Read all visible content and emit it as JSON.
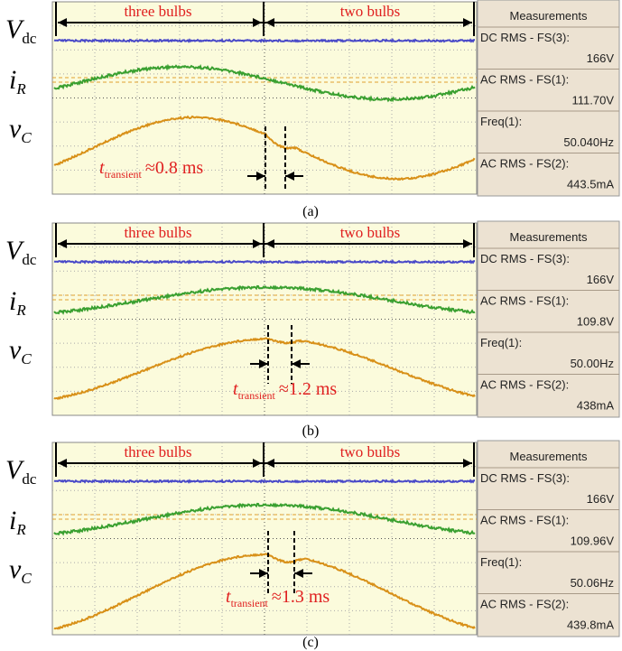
{
  "panels": [
    {
      "caption": "(a)",
      "signals": [
        {
          "symbol": "V",
          "subscript": "dc"
        },
        {
          "symbol": "i",
          "subscript": "R"
        },
        {
          "symbol": "v",
          "subscript": "C"
        }
      ],
      "intervals": [
        "three bulbs",
        "two bulbs"
      ],
      "transient": {
        "symbol": "t",
        "subscript": "transient",
        "text": "≈0.8 ms"
      },
      "measurements": {
        "title": "Measurements",
        "items": [
          {
            "label": "DC RMS - FS(3):",
            "value": "166V"
          },
          {
            "label": "AC RMS - FS(1):",
            "value": "111.70V"
          },
          {
            "label": "Freq(1):",
            "value": "50.040Hz"
          },
          {
            "label": "AC RMS - FS(2):",
            "value": "443.5mA"
          }
        ]
      }
    },
    {
      "caption": "(b)",
      "signals": [
        {
          "symbol": "V",
          "subscript": "dc"
        },
        {
          "symbol": "i",
          "subscript": "R"
        },
        {
          "symbol": "v",
          "subscript": "C"
        }
      ],
      "intervals": [
        "three bulbs",
        "two bulbs"
      ],
      "transient": {
        "symbol": "t",
        "subscript": "transient",
        "text": "≈1.2 ms"
      },
      "measurements": {
        "title": "Measurements",
        "items": [
          {
            "label": "DC RMS - FS(3):",
            "value": "166V"
          },
          {
            "label": "AC RMS - FS(1):",
            "value": "109.8V"
          },
          {
            "label": "Freq(1):",
            "value": "50.00Hz"
          },
          {
            "label": "AC RMS - FS(2):",
            "value": "438mA"
          }
        ]
      }
    },
    {
      "caption": "(c)",
      "signals": [
        {
          "symbol": "V",
          "subscript": "dc"
        },
        {
          "symbol": "i",
          "subscript": "R"
        },
        {
          "symbol": "v",
          "subscript": "C"
        }
      ],
      "intervals": [
        "three bulbs",
        "two bulbs"
      ],
      "transient": {
        "symbol": "t",
        "subscript": "transient",
        "text": "≈1.3 ms"
      },
      "measurements": {
        "title": "Measurements",
        "items": [
          {
            "label": "DC RMS - FS(3):",
            "value": "166V"
          },
          {
            "label": "AC RMS - FS(1):",
            "value": "109.96V"
          },
          {
            "label": "Freq(1):",
            "value": "50.06Hz"
          },
          {
            "label": "AC RMS - FS(2):",
            "value": "439.8mA"
          }
        ]
      }
    }
  ]
}
